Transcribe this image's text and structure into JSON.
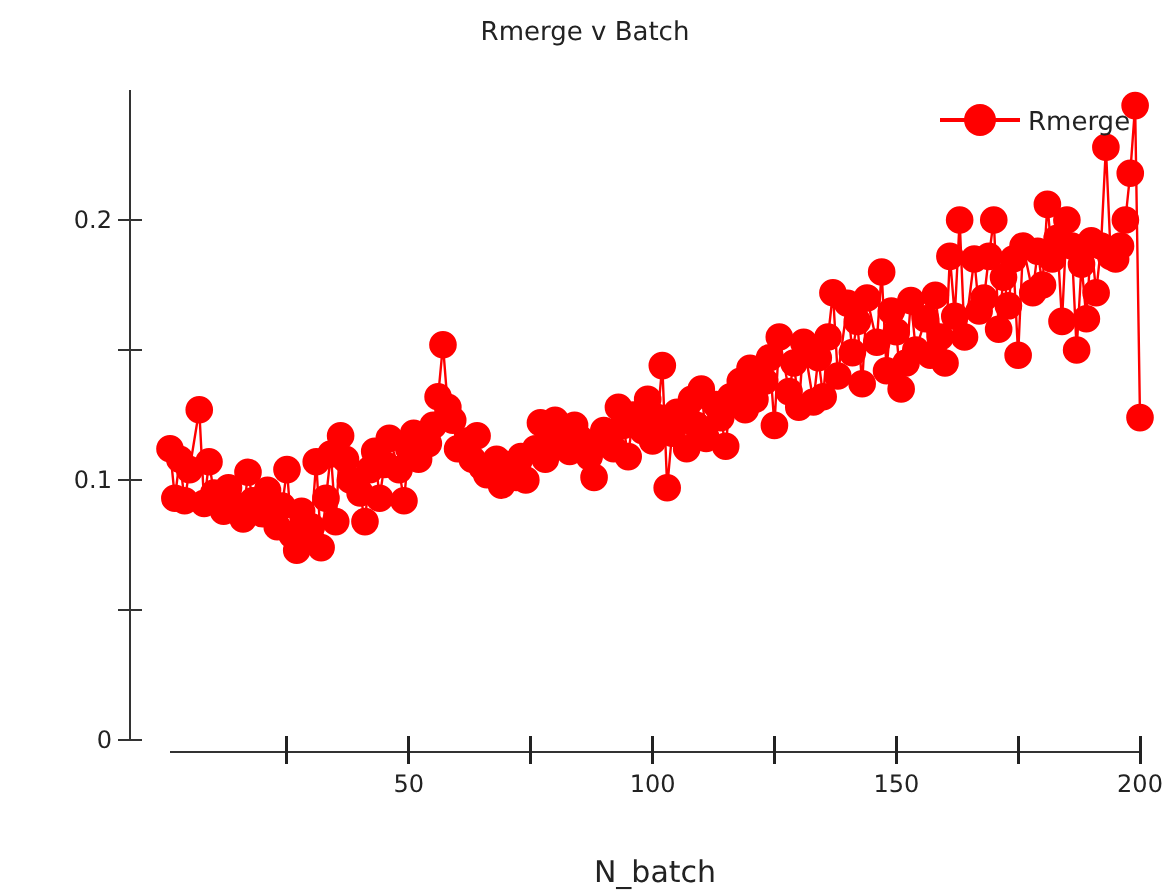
{
  "chart_data": {
    "type": "line",
    "title": "Rmerge v Batch",
    "xlabel": "N_batch",
    "marker": "circle",
    "line_style": "solid",
    "legend": "top right",
    "grid": false,
    "xlim": [
      1,
      200
    ],
    "xticks": [
      {
        "value": 25,
        "label": null
      },
      50,
      {
        "value": 75,
        "label": null
      },
      100,
      {
        "value": 125,
        "label": null
      },
      150,
      {
        "value": 175,
        "label": null
      },
      200
    ],
    "ylim": [
      0,
      0.25
    ],
    "yticks": [
      0,
      {
        "value": 0.05,
        "label": null
      },
      0.1,
      {
        "value": 0.15,
        "label": null
      },
      0.2
    ],
    "series": [
      {
        "name": "Rmerge",
        "color": "#ff0000",
        "x": [
          1,
          2,
          3,
          4,
          5,
          7,
          8,
          9,
          10,
          12,
          13,
          15,
          16,
          17,
          18,
          20,
          21,
          23,
          24,
          25,
          26,
          27,
          28,
          29,
          30,
          31,
          32,
          33,
          34,
          35,
          36,
          37,
          38,
          40,
          41,
          42,
          43,
          44,
          45,
          46,
          48,
          49,
          50,
          51,
          52,
          54,
          55,
          56,
          57,
          58,
          59,
          60,
          62,
          63,
          64,
          65,
          66,
          68,
          69,
          70,
          72,
          73,
          74,
          76,
          77,
          78,
          79,
          80,
          82,
          83,
          84,
          85,
          87,
          88,
          89,
          90,
          92,
          93,
          94,
          95,
          96,
          98,
          99,
          100,
          101,
          102,
          103,
          104,
          105,
          107,
          108,
          109,
          110,
          111,
          113,
          114,
          115,
          116,
          118,
          119,
          120,
          121,
          123,
          124,
          125,
          126,
          128,
          129,
          130,
          131,
          133,
          134,
          135,
          136,
          137,
          138,
          140,
          141,
          142,
          143,
          144,
          146,
          147,
          148,
          149,
          150,
          151,
          152,
          153,
          154,
          156,
          157,
          158,
          159,
          160,
          161,
          162,
          163,
          164,
          166,
          167,
          168,
          169,
          170,
          171,
          172,
          173,
          174,
          175,
          176,
          178,
          179,
          180,
          181,
          182,
          183,
          184,
          185,
          186,
          187,
          188,
          189,
          190,
          191,
          192,
          193,
          194,
          195,
          196,
          197,
          198,
          199,
          200
        ],
        "values": [
          0.112,
          0.093,
          0.108,
          0.092,
          0.104,
          0.127,
          0.091,
          0.107,
          0.095,
          0.088,
          0.097,
          0.09,
          0.085,
          0.103,
          0.092,
          0.087,
          0.096,
          0.082,
          0.09,
          0.104,
          0.079,
          0.073,
          0.088,
          0.078,
          0.082,
          0.107,
          0.074,
          0.093,
          0.11,
          0.084,
          0.117,
          0.108,
          0.1,
          0.095,
          0.084,
          0.104,
          0.111,
          0.093,
          0.106,
          0.116,
          0.104,
          0.092,
          0.112,
          0.118,
          0.108,
          0.114,
          0.121,
          0.132,
          0.152,
          0.128,
          0.123,
          0.112,
          0.115,
          0.108,
          0.117,
          0.105,
          0.102,
          0.108,
          0.098,
          0.106,
          0.101,
          0.109,
          0.1,
          0.112,
          0.122,
          0.108,
          0.116,
          0.123,
          0.118,
          0.111,
          0.121,
          0.116,
          0.109,
          0.101,
          0.114,
          0.119,
          0.112,
          0.128,
          0.121,
          0.109,
          0.125,
          0.119,
          0.131,
          0.115,
          0.124,
          0.144,
          0.097,
          0.118,
          0.126,
          0.112,
          0.131,
          0.121,
          0.135,
          0.116,
          0.129,
          0.124,
          0.113,
          0.132,
          0.138,
          0.127,
          0.143,
          0.131,
          0.138,
          0.147,
          0.121,
          0.155,
          0.134,
          0.145,
          0.128,
          0.153,
          0.13,
          0.147,
          0.132,
          0.155,
          0.172,
          0.14,
          0.168,
          0.149,
          0.161,
          0.137,
          0.17,
          0.153,
          0.18,
          0.142,
          0.165,
          0.157,
          0.135,
          0.145,
          0.169,
          0.15,
          0.162,
          0.148,
          0.171,
          0.155,
          0.145,
          0.186,
          0.163,
          0.2,
          0.155,
          0.185,
          0.165,
          0.17,
          0.186,
          0.2,
          0.158,
          0.178,
          0.167,
          0.185,
          0.148,
          0.19,
          0.172,
          0.188,
          0.175,
          0.206,
          0.185,
          0.193,
          0.161,
          0.2,
          0.19,
          0.15,
          0.183,
          0.162,
          0.192,
          0.172,
          0.19,
          0.228,
          0.186,
          0.185,
          0.19,
          0.2,
          0.218,
          0.244,
          0.124
        ]
      }
    ]
  }
}
